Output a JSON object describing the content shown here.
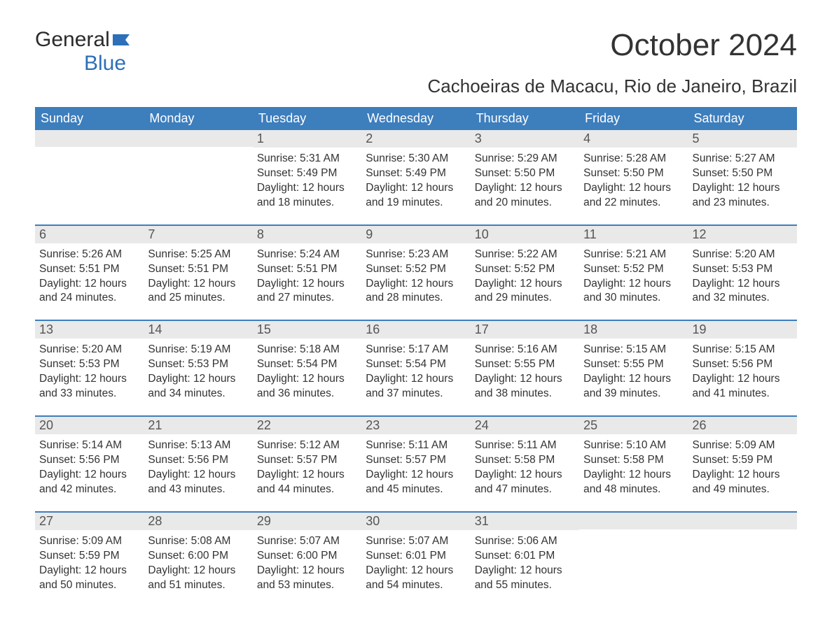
{
  "logo": {
    "text_general": "General",
    "text_blue": "Blue",
    "icon_fill": "#2d6fb8"
  },
  "title": {
    "month": "October 2024",
    "location": "Cachoeiras de Macacu, Rio de Janeiro, Brazil"
  },
  "colors": {
    "header_bg": "#3d7ebd",
    "header_text": "#ffffff",
    "daynum_bg": "#e9e9e9",
    "body_text": "#333333",
    "week_border": "#3d7ebd"
  },
  "day_headers": [
    "Sunday",
    "Monday",
    "Tuesday",
    "Wednesday",
    "Thursday",
    "Friday",
    "Saturday"
  ],
  "weeks": [
    [
      {
        "day": "",
        "sunrise": "",
        "sunset": "",
        "daylight_l1": "",
        "daylight_l2": ""
      },
      {
        "day": "",
        "sunrise": "",
        "sunset": "",
        "daylight_l1": "",
        "daylight_l2": ""
      },
      {
        "day": "1",
        "sunrise": "Sunrise: 5:31 AM",
        "sunset": "Sunset: 5:49 PM",
        "daylight_l1": "Daylight: 12 hours",
        "daylight_l2": "and 18 minutes."
      },
      {
        "day": "2",
        "sunrise": "Sunrise: 5:30 AM",
        "sunset": "Sunset: 5:49 PM",
        "daylight_l1": "Daylight: 12 hours",
        "daylight_l2": "and 19 minutes."
      },
      {
        "day": "3",
        "sunrise": "Sunrise: 5:29 AM",
        "sunset": "Sunset: 5:50 PM",
        "daylight_l1": "Daylight: 12 hours",
        "daylight_l2": "and 20 minutes."
      },
      {
        "day": "4",
        "sunrise": "Sunrise: 5:28 AM",
        "sunset": "Sunset: 5:50 PM",
        "daylight_l1": "Daylight: 12 hours",
        "daylight_l2": "and 22 minutes."
      },
      {
        "day": "5",
        "sunrise": "Sunrise: 5:27 AM",
        "sunset": "Sunset: 5:50 PM",
        "daylight_l1": "Daylight: 12 hours",
        "daylight_l2": "and 23 minutes."
      }
    ],
    [
      {
        "day": "6",
        "sunrise": "Sunrise: 5:26 AM",
        "sunset": "Sunset: 5:51 PM",
        "daylight_l1": "Daylight: 12 hours",
        "daylight_l2": "and 24 minutes."
      },
      {
        "day": "7",
        "sunrise": "Sunrise: 5:25 AM",
        "sunset": "Sunset: 5:51 PM",
        "daylight_l1": "Daylight: 12 hours",
        "daylight_l2": "and 25 minutes."
      },
      {
        "day": "8",
        "sunrise": "Sunrise: 5:24 AM",
        "sunset": "Sunset: 5:51 PM",
        "daylight_l1": "Daylight: 12 hours",
        "daylight_l2": "and 27 minutes."
      },
      {
        "day": "9",
        "sunrise": "Sunrise: 5:23 AM",
        "sunset": "Sunset: 5:52 PM",
        "daylight_l1": "Daylight: 12 hours",
        "daylight_l2": "and 28 minutes."
      },
      {
        "day": "10",
        "sunrise": "Sunrise: 5:22 AM",
        "sunset": "Sunset: 5:52 PM",
        "daylight_l1": "Daylight: 12 hours",
        "daylight_l2": "and 29 minutes."
      },
      {
        "day": "11",
        "sunrise": "Sunrise: 5:21 AM",
        "sunset": "Sunset: 5:52 PM",
        "daylight_l1": "Daylight: 12 hours",
        "daylight_l2": "and 30 minutes."
      },
      {
        "day": "12",
        "sunrise": "Sunrise: 5:20 AM",
        "sunset": "Sunset: 5:53 PM",
        "daylight_l1": "Daylight: 12 hours",
        "daylight_l2": "and 32 minutes."
      }
    ],
    [
      {
        "day": "13",
        "sunrise": "Sunrise: 5:20 AM",
        "sunset": "Sunset: 5:53 PM",
        "daylight_l1": "Daylight: 12 hours",
        "daylight_l2": "and 33 minutes."
      },
      {
        "day": "14",
        "sunrise": "Sunrise: 5:19 AM",
        "sunset": "Sunset: 5:53 PM",
        "daylight_l1": "Daylight: 12 hours",
        "daylight_l2": "and 34 minutes."
      },
      {
        "day": "15",
        "sunrise": "Sunrise: 5:18 AM",
        "sunset": "Sunset: 5:54 PM",
        "daylight_l1": "Daylight: 12 hours",
        "daylight_l2": "and 36 minutes."
      },
      {
        "day": "16",
        "sunrise": "Sunrise: 5:17 AM",
        "sunset": "Sunset: 5:54 PM",
        "daylight_l1": "Daylight: 12 hours",
        "daylight_l2": "and 37 minutes."
      },
      {
        "day": "17",
        "sunrise": "Sunrise: 5:16 AM",
        "sunset": "Sunset: 5:55 PM",
        "daylight_l1": "Daylight: 12 hours",
        "daylight_l2": "and 38 minutes."
      },
      {
        "day": "18",
        "sunrise": "Sunrise: 5:15 AM",
        "sunset": "Sunset: 5:55 PM",
        "daylight_l1": "Daylight: 12 hours",
        "daylight_l2": "and 39 minutes."
      },
      {
        "day": "19",
        "sunrise": "Sunrise: 5:15 AM",
        "sunset": "Sunset: 5:56 PM",
        "daylight_l1": "Daylight: 12 hours",
        "daylight_l2": "and 41 minutes."
      }
    ],
    [
      {
        "day": "20",
        "sunrise": "Sunrise: 5:14 AM",
        "sunset": "Sunset: 5:56 PM",
        "daylight_l1": "Daylight: 12 hours",
        "daylight_l2": "and 42 minutes."
      },
      {
        "day": "21",
        "sunrise": "Sunrise: 5:13 AM",
        "sunset": "Sunset: 5:56 PM",
        "daylight_l1": "Daylight: 12 hours",
        "daylight_l2": "and 43 minutes."
      },
      {
        "day": "22",
        "sunrise": "Sunrise: 5:12 AM",
        "sunset": "Sunset: 5:57 PM",
        "daylight_l1": "Daylight: 12 hours",
        "daylight_l2": "and 44 minutes."
      },
      {
        "day": "23",
        "sunrise": "Sunrise: 5:11 AM",
        "sunset": "Sunset: 5:57 PM",
        "daylight_l1": "Daylight: 12 hours",
        "daylight_l2": "and 45 minutes."
      },
      {
        "day": "24",
        "sunrise": "Sunrise: 5:11 AM",
        "sunset": "Sunset: 5:58 PM",
        "daylight_l1": "Daylight: 12 hours",
        "daylight_l2": "and 47 minutes."
      },
      {
        "day": "25",
        "sunrise": "Sunrise: 5:10 AM",
        "sunset": "Sunset: 5:58 PM",
        "daylight_l1": "Daylight: 12 hours",
        "daylight_l2": "and 48 minutes."
      },
      {
        "day": "26",
        "sunrise": "Sunrise: 5:09 AM",
        "sunset": "Sunset: 5:59 PM",
        "daylight_l1": "Daylight: 12 hours",
        "daylight_l2": "and 49 minutes."
      }
    ],
    [
      {
        "day": "27",
        "sunrise": "Sunrise: 5:09 AM",
        "sunset": "Sunset: 5:59 PM",
        "daylight_l1": "Daylight: 12 hours",
        "daylight_l2": "and 50 minutes."
      },
      {
        "day": "28",
        "sunrise": "Sunrise: 5:08 AM",
        "sunset": "Sunset: 6:00 PM",
        "daylight_l1": "Daylight: 12 hours",
        "daylight_l2": "and 51 minutes."
      },
      {
        "day": "29",
        "sunrise": "Sunrise: 5:07 AM",
        "sunset": "Sunset: 6:00 PM",
        "daylight_l1": "Daylight: 12 hours",
        "daylight_l2": "and 53 minutes."
      },
      {
        "day": "30",
        "sunrise": "Sunrise: 5:07 AM",
        "sunset": "Sunset: 6:01 PM",
        "daylight_l1": "Daylight: 12 hours",
        "daylight_l2": "and 54 minutes."
      },
      {
        "day": "31",
        "sunrise": "Sunrise: 5:06 AM",
        "sunset": "Sunset: 6:01 PM",
        "daylight_l1": "Daylight: 12 hours",
        "daylight_l2": "and 55 minutes."
      },
      {
        "day": "",
        "sunrise": "",
        "sunset": "",
        "daylight_l1": "",
        "daylight_l2": ""
      },
      {
        "day": "",
        "sunrise": "",
        "sunset": "",
        "daylight_l1": "",
        "daylight_l2": ""
      }
    ]
  ]
}
